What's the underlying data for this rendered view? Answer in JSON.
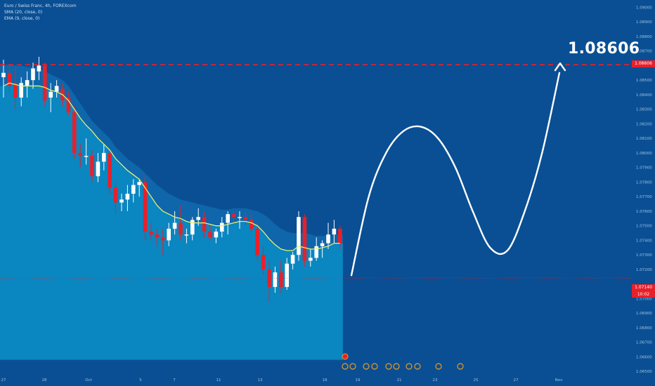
{
  "legend": {
    "symbol": "Euro / Swiss Franc, 4h, FOREXcom",
    "ind1": "SMA (20, close, 0)",
    "ind2": "EMA (9, close, 0)"
  },
  "annotation": {
    "target_label": "1.08606"
  },
  "price_tags": {
    "target": "1.08606",
    "current": "1.07140",
    "countdown": "10:02"
  },
  "colors": {
    "background": "#0a4f94",
    "lower_band": "#0a86c0",
    "upper_band": "#0f66aa",
    "up_candle": "#ffffff",
    "down_candle": "#e8202a",
    "ema": "#e8f070",
    "target_line": "#e8202a",
    "projection": "#ffffff"
  },
  "chart_data": {
    "type": "candlestick",
    "title": "",
    "y_range": [
      1.064,
      1.0905
    ],
    "y_ticks": [
      "1.09000",
      "1.08900",
      "1.08800",
      "1.08700",
      "1.08606",
      "1.08500",
      "1.08400",
      "1.08300",
      "1.08200",
      "1.08100",
      "1.08000",
      "1.07900",
      "1.07800",
      "1.07700",
      "1.07600",
      "1.07500",
      "1.07400",
      "1.07300",
      "1.07200",
      "1.07140",
      "1.07000",
      "1.06900",
      "1.06800",
      "1.06700",
      "1.06600",
      "1.06500"
    ],
    "x_tick_labels": [
      "27",
      "28",
      "Oct",
      "5",
      "7",
      "11",
      "13",
      "18",
      "19",
      "21",
      "23",
      "25",
      "27",
      "Nov"
    ],
    "target_price": 1.08606,
    "current_price": 1.0714,
    "candles": [
      {
        "o": 1.0852,
        "h": 1.0864,
        "l": 1.0838,
        "c": 1.0855
      },
      {
        "o": 1.0855,
        "h": 1.086,
        "l": 1.0842,
        "c": 1.0846
      },
      {
        "o": 1.0848,
        "h": 1.0858,
        "l": 1.083,
        "c": 1.0838
      },
      {
        "o": 1.0838,
        "h": 1.0852,
        "l": 1.0832,
        "c": 1.0848
      },
      {
        "o": 1.0846,
        "h": 1.0856,
        "l": 1.0838,
        "c": 1.085
      },
      {
        "o": 1.085,
        "h": 1.0862,
        "l": 1.0844,
        "c": 1.0858
      },
      {
        "o": 1.0856,
        "h": 1.0866,
        "l": 1.085,
        "c": 1.086
      },
      {
        "o": 1.086,
        "h": 1.0862,
        "l": 1.0832,
        "c": 1.0836
      },
      {
        "o": 1.0838,
        "h": 1.0848,
        "l": 1.0828,
        "c": 1.0842
      },
      {
        "o": 1.0842,
        "h": 1.085,
        "l": 1.0838,
        "c": 1.0846
      },
      {
        "o": 1.0844,
        "h": 1.0848,
        "l": 1.0832,
        "c": 1.0836
      },
      {
        "o": 1.0838,
        "h": 1.0842,
        "l": 1.0826,
        "c": 1.0828
      },
      {
        "o": 1.0828,
        "h": 1.0832,
        "l": 1.0796,
        "c": 1.08
      },
      {
        "o": 1.08,
        "h": 1.0806,
        "l": 1.079,
        "c": 1.0798
      },
      {
        "o": 1.0798,
        "h": 1.081,
        "l": 1.0792,
        "c": 1.0798
      },
      {
        "o": 1.0798,
        "h": 1.0802,
        "l": 1.078,
        "c": 1.0784
      },
      {
        "o": 1.0784,
        "h": 1.08,
        "l": 1.078,
        "c": 1.0794
      },
      {
        "o": 1.0794,
        "h": 1.0806,
        "l": 1.0788,
        "c": 1.08
      },
      {
        "o": 1.08,
        "h": 1.0802,
        "l": 1.0772,
        "c": 1.0776
      },
      {
        "o": 1.0776,
        "h": 1.078,
        "l": 1.0758,
        "c": 1.0766
      },
      {
        "o": 1.0766,
        "h": 1.0772,
        "l": 1.076,
        "c": 1.0768
      },
      {
        "o": 1.0768,
        "h": 1.0778,
        "l": 1.076,
        "c": 1.0772
      },
      {
        "o": 1.0772,
        "h": 1.0782,
        "l": 1.0766,
        "c": 1.0778
      },
      {
        "o": 1.0778,
        "h": 1.0782,
        "l": 1.077,
        "c": 1.078
      },
      {
        "o": 1.078,
        "h": 1.0784,
        "l": 1.074,
        "c": 1.0746
      },
      {
        "o": 1.0746,
        "h": 1.0752,
        "l": 1.074,
        "c": 1.0744
      },
      {
        "o": 1.0744,
        "h": 1.0748,
        "l": 1.0736,
        "c": 1.0742
      },
      {
        "o": 1.0742,
        "h": 1.0748,
        "l": 1.073,
        "c": 1.074
      },
      {
        "o": 1.074,
        "h": 1.0752,
        "l": 1.0736,
        "c": 1.0748
      },
      {
        "o": 1.0748,
        "h": 1.076,
        "l": 1.0744,
        "c": 1.0752
      },
      {
        "o": 1.0752,
        "h": 1.0764,
        "l": 1.074,
        "c": 1.0744
      },
      {
        "o": 1.0744,
        "h": 1.0748,
        "l": 1.0738,
        "c": 1.0744
      },
      {
        "o": 1.0744,
        "h": 1.0756,
        "l": 1.074,
        "c": 1.0754
      },
      {
        "o": 1.0754,
        "h": 1.0762,
        "l": 1.075,
        "c": 1.0756
      },
      {
        "o": 1.0756,
        "h": 1.076,
        "l": 1.0742,
        "c": 1.0746
      },
      {
        "o": 1.0746,
        "h": 1.075,
        "l": 1.074,
        "c": 1.0742
      },
      {
        "o": 1.0742,
        "h": 1.0748,
        "l": 1.0738,
        "c": 1.0746
      },
      {
        "o": 1.0746,
        "h": 1.0756,
        "l": 1.0742,
        "c": 1.0752
      },
      {
        "o": 1.0752,
        "h": 1.076,
        "l": 1.0744,
        "c": 1.0758
      },
      {
        "o": 1.0758,
        "h": 1.076,
        "l": 1.0752,
        "c": 1.0756
      },
      {
        "o": 1.0756,
        "h": 1.076,
        "l": 1.0748,
        "c": 1.0756
      },
      {
        "o": 1.0756,
        "h": 1.076,
        "l": 1.075,
        "c": 1.0754
      },
      {
        "o": 1.0754,
        "h": 1.0758,
        "l": 1.0746,
        "c": 1.0748
      },
      {
        "o": 1.0748,
        "h": 1.0752,
        "l": 1.0726,
        "c": 1.073
      },
      {
        "o": 1.073,
        "h": 1.0736,
        "l": 1.0716,
        "c": 1.072
      },
      {
        "o": 1.072,
        "h": 1.0726,
        "l": 1.0698,
        "c": 1.0708
      },
      {
        "o": 1.0708,
        "h": 1.0722,
        "l": 1.0704,
        "c": 1.0718
      },
      {
        "o": 1.0718,
        "h": 1.0726,
        "l": 1.0704,
        "c": 1.0708
      },
      {
        "o": 1.0708,
        "h": 1.0728,
        "l": 1.0706,
        "c": 1.0724
      },
      {
        "o": 1.0724,
        "h": 1.0732,
        "l": 1.072,
        "c": 1.073
      },
      {
        "o": 1.073,
        "h": 1.076,
        "l": 1.0726,
        "c": 1.0756
      },
      {
        "o": 1.0756,
        "h": 1.0758,
        "l": 1.0722,
        "c": 1.0726
      },
      {
        "o": 1.0726,
        "h": 1.0734,
        "l": 1.0722,
        "c": 1.0728
      },
      {
        "o": 1.0728,
        "h": 1.0742,
        "l": 1.0726,
        "c": 1.0736
      },
      {
        "o": 1.0736,
        "h": 1.074,
        "l": 1.0728,
        "c": 1.0738
      },
      {
        "o": 1.0738,
        "h": 1.0752,
        "l": 1.0734,
        "c": 1.0744
      },
      {
        "o": 1.0744,
        "h": 1.0754,
        "l": 1.0738,
        "c": 1.0748
      },
      {
        "o": 1.0748,
        "h": 1.075,
        "l": 1.0734,
        "c": 1.0738
      }
    ],
    "ema": [
      1.0846,
      1.0848,
      1.0847,
      1.0846,
      1.0846,
      1.0846,
      1.0846,
      1.0845,
      1.0843,
      1.0842,
      1.084,
      1.0836,
      1.083,
      1.0824,
      1.0819,
      1.0815,
      1.081,
      1.0806,
      1.0802,
      1.0796,
      1.0792,
      1.0788,
      1.0785,
      1.0782,
      1.0776,
      1.077,
      1.0764,
      1.076,
      1.0758,
      1.0756,
      1.0755,
      1.0753,
      1.0752,
      1.0752,
      1.0752,
      1.0751,
      1.075,
      1.075,
      1.0751,
      1.0752,
      1.0753,
      1.0753,
      1.0752,
      1.075,
      1.0746,
      1.0741,
      1.0737,
      1.0734,
      1.0733,
      1.0733,
      1.0736,
      1.0735,
      1.0734,
      1.0734,
      1.0735,
      1.0736,
      1.0738,
      1.0738
    ],
    "upper_band": [
      1.086,
      1.0861,
      1.086,
      1.086,
      1.0859,
      1.0859,
      1.0858,
      1.0856,
      1.0854,
      1.0852,
      1.085,
      1.0846,
      1.084,
      1.0834,
      1.0828,
      1.0822,
      1.0818,
      1.0814,
      1.081,
      1.0804,
      1.08,
      1.0796,
      1.0793,
      1.079,
      1.0786,
      1.0782,
      1.0778,
      1.0775,
      1.0772,
      1.077,
      1.0768,
      1.0767,
      1.0766,
      1.0765,
      1.0764,
      1.0763,
      1.0762,
      1.0761,
      1.0761,
      1.0762,
      1.0762,
      1.0762,
      1.0761,
      1.076,
      1.0758,
      1.0755,
      1.0751,
      1.0748,
      1.0746,
      1.0745,
      1.0745,
      1.0745,
      1.0744,
      1.0743,
      1.0743,
      1.0743,
      1.0744,
      1.0744
    ],
    "projection_path_price": [
      1.0716,
      1.077,
      1.08,
      1.0815,
      1.0818,
      1.081,
      1.079,
      1.076,
      1.0735,
      1.0733,
      1.076,
      1.08,
      1.0855
    ]
  }
}
